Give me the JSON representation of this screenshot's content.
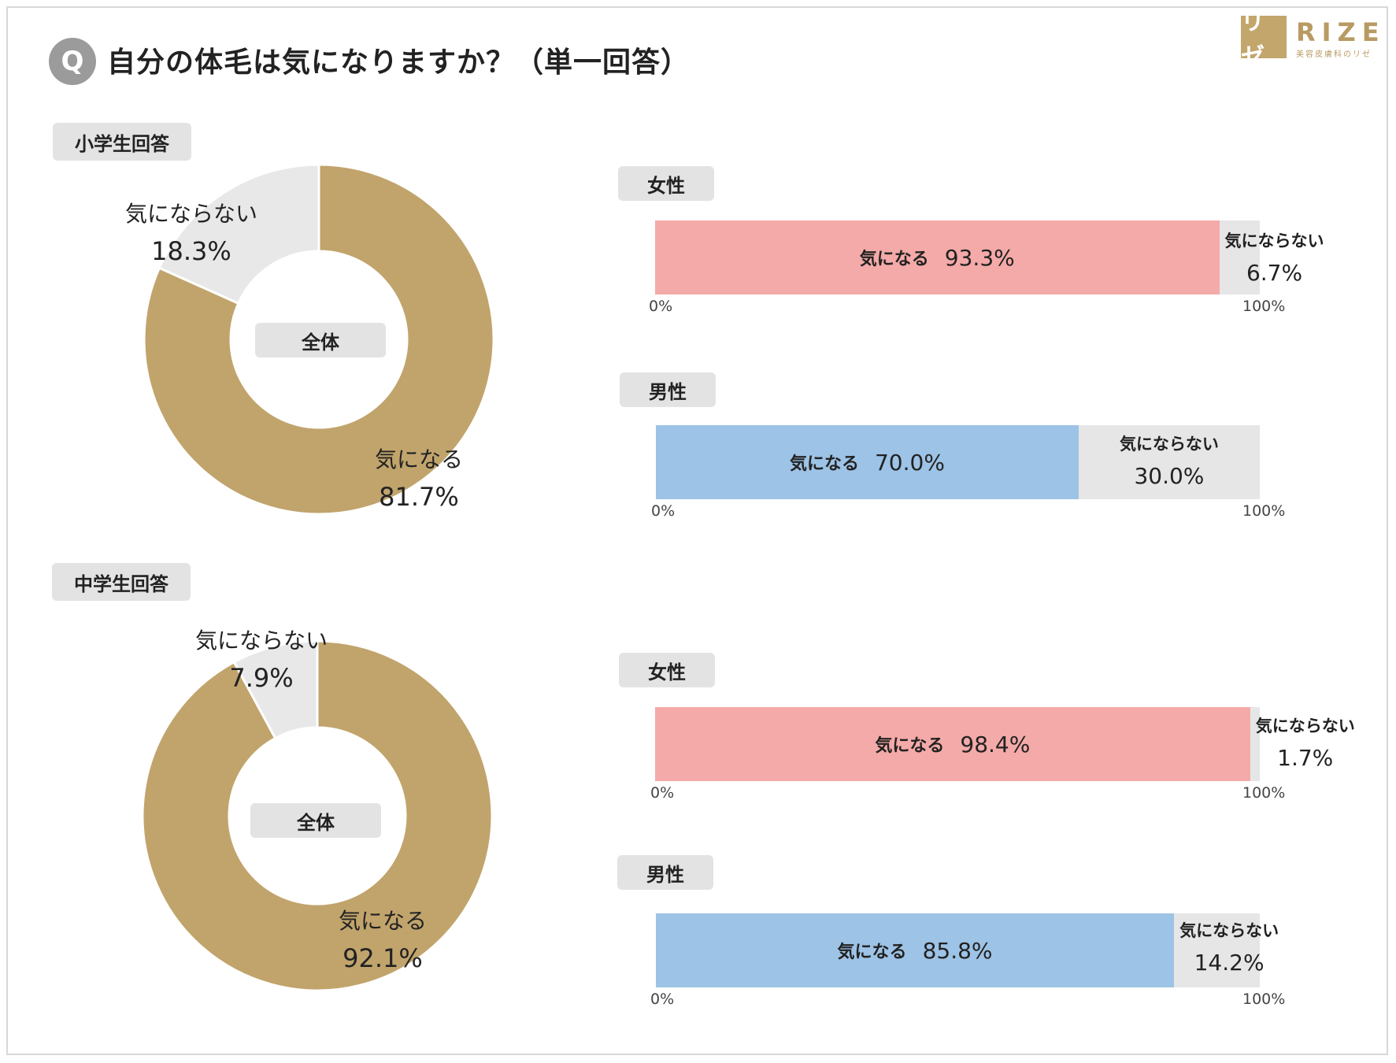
{
  "header": {
    "badge": "Q",
    "title": "自分の体毛は気になりますか？（単一回答）",
    "logo_mark": "リゼ",
    "logo_word": "RIZE",
    "logo_sub": "美容皮膚科のリゼ"
  },
  "colors": {
    "gold": "#c1a46c",
    "pink": "#f4aaa8",
    "blue": "#9dc3e6",
    "gray": "#e6e6e6",
    "donut_gray": "#e8e8e8"
  },
  "chart_data": [
    {
      "type": "pie",
      "section": "小学生回答",
      "center_label": "全体",
      "categories": [
        "気になる",
        "気にならない"
      ],
      "values": [
        81.7,
        18.3
      ],
      "labels": [
        "81.7%",
        "18.3%"
      ]
    },
    {
      "type": "bar",
      "group": "女性",
      "categories": [
        "気になる",
        "気にならない"
      ],
      "values": [
        93.3,
        6.7
      ],
      "labels": [
        "93.3%",
        "6.7%"
      ],
      "axis": [
        "0%",
        "100%"
      ]
    },
    {
      "type": "bar",
      "group": "男性",
      "categories": [
        "気になる",
        "気にならない"
      ],
      "values": [
        70.0,
        30.0
      ],
      "labels": [
        "70.0%",
        "30.0%"
      ],
      "axis": [
        "0%",
        "100%"
      ]
    },
    {
      "type": "pie",
      "section": "中学生回答",
      "center_label": "全体",
      "categories": [
        "気になる",
        "気にならない"
      ],
      "values": [
        92.1,
        7.9
      ],
      "labels": [
        "92.1%",
        "7.9%"
      ]
    },
    {
      "type": "bar",
      "group": "女性",
      "categories": [
        "気になる",
        "気にならない"
      ],
      "values": [
        98.4,
        1.7
      ],
      "labels": [
        "98.4%",
        "1.7%"
      ],
      "axis": [
        "0%",
        "100%"
      ]
    },
    {
      "type": "bar",
      "group": "男性",
      "categories": [
        "気になる",
        "気にならない"
      ],
      "values": [
        85.8,
        14.2
      ],
      "labels": [
        "85.8%",
        "14.2%"
      ],
      "axis": [
        "0%",
        "100%"
      ]
    }
  ]
}
